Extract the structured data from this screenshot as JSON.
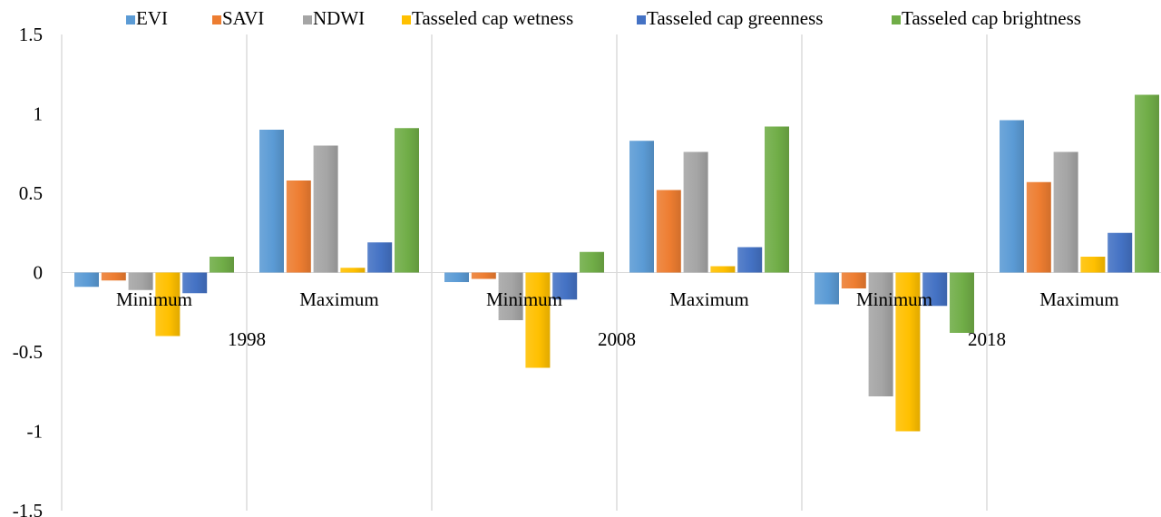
{
  "chart_data": {
    "type": "bar",
    "title": "",
    "xlabel": "",
    "ylabel": "",
    "ylim": [
      -1.5,
      1.5
    ],
    "yticks": [
      1.5,
      1,
      0.5,
      0,
      -0.5,
      -1,
      -1.5
    ],
    "ytick_labels": [
      "1.5",
      "1",
      "0.5",
      "0",
      "-0.5",
      "-1",
      "-1.5"
    ],
    "grid": "vertical separators between categories",
    "legend_position": "top",
    "groups": [
      "1998",
      "2008",
      "2018"
    ],
    "categories": [
      {
        "year": "1998",
        "label": "Minimum"
      },
      {
        "year": "1998",
        "label": "Maximum"
      },
      {
        "year": "2008",
        "label": "Minimum"
      },
      {
        "year": "2008",
        "label": "Maximum"
      },
      {
        "year": "2018",
        "label": "Minimum"
      },
      {
        "year": "2018",
        "label": "Maximum"
      }
    ],
    "series": [
      {
        "name": "EVI",
        "color": "#5B9BD5",
        "values": [
          -0.09,
          0.9,
          -0.06,
          0.83,
          -0.2,
          0.96
        ]
      },
      {
        "name": "SAVI",
        "color": "#ED7D31",
        "values": [
          -0.05,
          0.58,
          -0.04,
          0.52,
          -0.1,
          0.57
        ]
      },
      {
        "name": "NDWI",
        "color": "#A5A5A5",
        "values": [
          -0.11,
          0.8,
          -0.3,
          0.76,
          -0.78,
          0.76
        ]
      },
      {
        "name": "Tasseled cap wetness",
        "color": "#FFC000",
        "values": [
          -0.4,
          0.03,
          -0.6,
          0.04,
          -1.0,
          0.1
        ]
      },
      {
        "name": "Tasseled cap greenness",
        "color": "#4472C4",
        "values": [
          -0.13,
          0.19,
          -0.17,
          0.16,
          -0.21,
          0.25
        ]
      },
      {
        "name": "Tasseled cap brightness",
        "color": "#70AD47",
        "values": [
          0.1,
          0.91,
          0.13,
          0.92,
          -0.38,
          1.12
        ]
      }
    ]
  }
}
